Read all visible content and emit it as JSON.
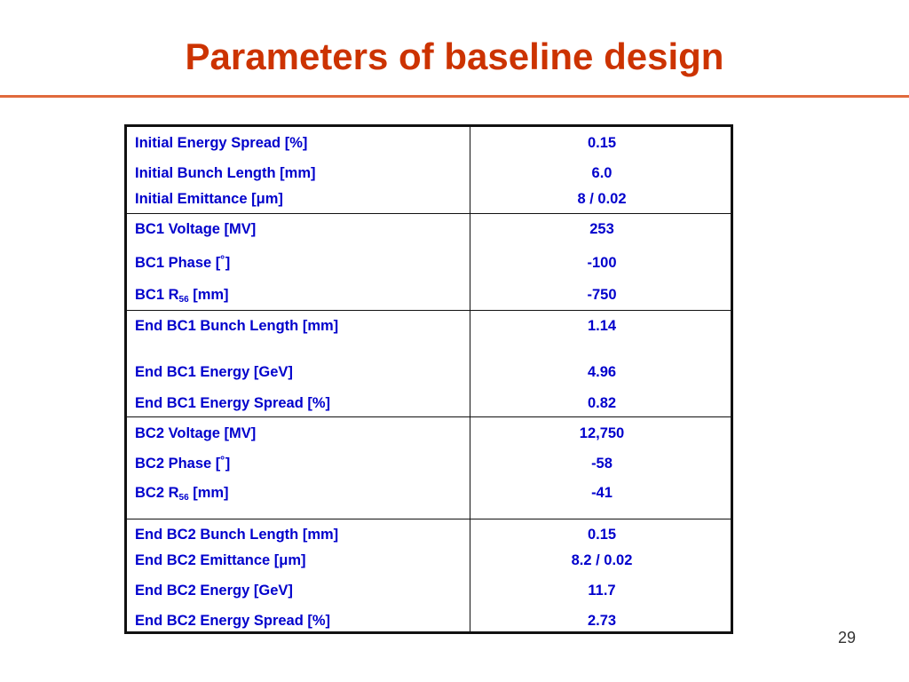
{
  "slide": {
    "title": "Parameters of baseline design",
    "page_number": "29",
    "colors": {
      "title": "#cc3300",
      "rule": "#e06a3c",
      "table_text": "#0000cc",
      "border": "#111111"
    }
  },
  "table": {
    "groups": [
      {
        "rows": [
          {
            "label": "Initial Energy Spread [%]",
            "value": "0.15"
          },
          {
            "label": "Initial Bunch Length [mm]",
            "value": "6.0"
          },
          {
            "label_pre": "Initial Emittance [",
            "label_sym": "μ",
            "label_post": "m]",
            "value": "8 / 0.02"
          }
        ]
      },
      {
        "rows": [
          {
            "label": "BC1 Voltage [MV]",
            "value": "253"
          },
          {
            "label": "BC1 Phase [˚]",
            "value": "-100"
          },
          {
            "label_pre": "BC1 R",
            "label_sub": "56",
            "label_post": " [mm]",
            "value": "-750"
          }
        ]
      },
      {
        "rows": [
          {
            "label": "End BC1 Bunch Length [mm]",
            "value": "1.14"
          },
          {
            "label": "End BC1 Energy [GeV]",
            "value": "4.96"
          },
          {
            "label": "End BC1 Energy Spread [%]",
            "value": "0.82"
          }
        ]
      },
      {
        "rows": [
          {
            "label": "BC2 Voltage [MV]",
            "value": "12,750"
          },
          {
            "label": "BC2 Phase [˚]",
            "value": "-58"
          },
          {
            "label_pre": "BC2 R",
            "label_sub": "56",
            "label_post": " [mm]",
            "value": "-41"
          }
        ]
      },
      {
        "rows": [
          {
            "label": "End BC2 Bunch Length [mm]",
            "value": "0.15"
          },
          {
            "label_pre": "End BC2 Emittance [",
            "label_sym": "μ",
            "label_post": "m]",
            "value": "8.2 / 0.02"
          },
          {
            "label": "End BC2 Energy [GeV]",
            "value": "11.7"
          },
          {
            "label": "End BC2 Energy Spread [%]",
            "value": "2.73"
          }
        ]
      }
    ]
  }
}
